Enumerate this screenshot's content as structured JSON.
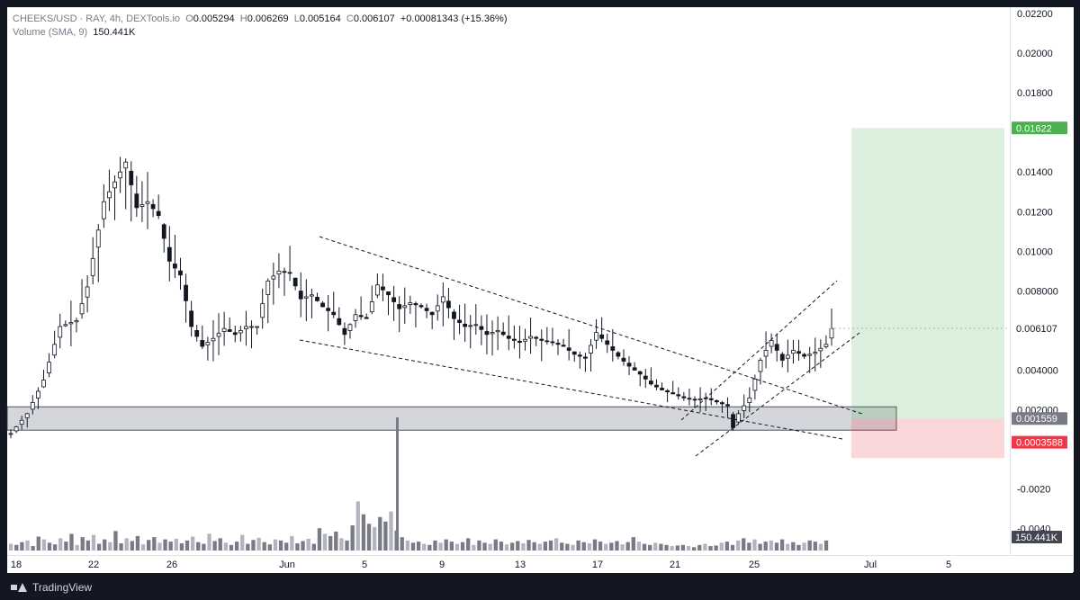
{
  "legend": {
    "symbol": "CHEEKS/USD · RAY, 4h, DEXTools.io",
    "o_label": "O",
    "o_value": "0.005294",
    "h_label": "H",
    "h_value": "0.006269",
    "l_label": "L",
    "l_value": "0.005164",
    "c_label": "C",
    "c_value": "0.006107",
    "change": "+0.00081343 (+15.36%)",
    "volume_label": "Volume (SMA, 9)",
    "volume_value": "150.441K"
  },
  "branding": {
    "name": "TradingView"
  },
  "chart_data": {
    "type": "candlestick",
    "price_axis": {
      "ticks": [
        "0.02200",
        "0.02000",
        "0.01800",
        "0.01400",
        "0.01200",
        "0.01000",
        "0.008000",
        "0.004000",
        "0.002000",
        "-0.0020",
        "-0.0040"
      ],
      "tick_values": [
        0.022,
        0.02,
        0.018,
        0.014,
        0.012,
        0.01,
        0.008,
        0.004,
        0.002,
        -0.002,
        -0.004
      ]
    },
    "time_axis": {
      "labels": [
        "18",
        "22",
        "26",
        "Jun",
        "5",
        "9",
        "13",
        "17",
        "21",
        "25",
        "Jul",
        "5"
      ]
    },
    "price_markers": [
      {
        "label": "0.01622",
        "value": 0.01622,
        "color": "#4caf50"
      },
      {
        "label": "0.006107",
        "value": 0.006107,
        "color": "#ffffff"
      },
      {
        "label": "0.001559",
        "value": 0.001559,
        "color": "#787b86"
      },
      {
        "label": "0.0003588",
        "value": 0.0003588,
        "color": "#f23645"
      }
    ],
    "volume_marker": {
      "label": "150.441K",
      "color": "#434651"
    },
    "price_path": [
      [
        0,
        0.0008
      ],
      [
        3,
        0.0018
      ],
      [
        6,
        0.0035
      ],
      [
        9,
        0.0062
      ],
      [
        12,
        0.0065
      ],
      [
        14,
        0.0082
      ],
      [
        17,
        0.0125
      ],
      [
        19,
        0.0135
      ],
      [
        21,
        0.0145
      ],
      [
        23,
        0.0122
      ],
      [
        25,
        0.0125
      ],
      [
        27,
        0.0118
      ],
      [
        29,
        0.0095
      ],
      [
        31,
        0.0088
      ],
      [
        33,
        0.0062
      ],
      [
        35,
        0.0052
      ],
      [
        37,
        0.0056
      ],
      [
        39,
        0.0061
      ],
      [
        41,
        0.0058
      ],
      [
        43,
        0.0062
      ],
      [
        45,
        0.0062
      ],
      [
        47,
        0.0085
      ],
      [
        49,
        0.009
      ],
      [
        51,
        0.0089
      ],
      [
        53,
        0.0076
      ],
      [
        55,
        0.0078
      ],
      [
        57,
        0.0072
      ],
      [
        59,
        0.0068
      ],
      [
        61,
        0.0058
      ],
      [
        63,
        0.0068
      ],
      [
        65,
        0.0066
      ],
      [
        67,
        0.0083
      ],
      [
        69,
        0.0078
      ],
      [
        71,
        0.0071
      ],
      [
        73,
        0.0074
      ],
      [
        75,
        0.0072
      ],
      [
        77,
        0.0068
      ],
      [
        79,
        0.0077
      ],
      [
        81,
        0.0066
      ],
      [
        83,
        0.0062
      ],
      [
        85,
        0.0063
      ],
      [
        87,
        0.0058
      ],
      [
        89,
        0.006
      ],
      [
        91,
        0.0056
      ],
      [
        93,
        0.0054
      ],
      [
        95,
        0.0057
      ],
      [
        97,
        0.0055
      ],
      [
        99,
        0.0054
      ],
      [
        101,
        0.0052
      ],
      [
        103,
        0.0048
      ],
      [
        105,
        0.0046
      ],
      [
        107,
        0.0059
      ],
      [
        109,
        0.0053
      ],
      [
        111,
        0.0047
      ],
      [
        113,
        0.0042
      ],
      [
        115,
        0.0038
      ],
      [
        117,
        0.0033
      ],
      [
        119,
        0.003
      ],
      [
        121,
        0.0028
      ],
      [
        123,
        0.0026
      ],
      [
        125,
        0.0025
      ],
      [
        127,
        0.0026
      ],
      [
        129,
        0.0024
      ],
      [
        131,
        0.0022
      ],
      [
        132,
        0.0011
      ],
      [
        133,
        0.0018
      ],
      [
        135,
        0.0026
      ],
      [
        137,
        0.0045
      ],
      [
        139,
        0.0055
      ],
      [
        141,
        0.0045
      ],
      [
        143,
        0.005
      ],
      [
        145,
        0.0047
      ],
      [
        147,
        0.0049
      ],
      [
        149,
        0.0053
      ],
      [
        150,
        0.0061
      ]
    ],
    "volume_values": [
      12,
      10,
      15,
      18,
      8,
      25,
      20,
      14,
      11,
      22,
      16,
      30,
      10,
      24,
      18,
      28,
      12,
      20,
      15,
      35,
      13,
      22,
      17,
      26,
      11,
      19,
      24,
      14,
      20,
      16,
      21,
      13,
      18,
      25,
      15,
      12,
      30,
      17,
      22,
      14,
      10,
      16,
      28,
      12,
      19,
      23,
      15,
      11,
      20,
      18,
      14,
      26,
      13,
      17,
      21,
      12,
      40,
      30,
      26,
      34,
      22,
      18,
      45,
      88,
      65,
      48,
      42,
      60,
      52,
      70,
      36,
      24,
      18,
      14,
      16,
      12,
      10,
      18,
      14,
      20,
      16,
      12,
      15,
      22,
      10,
      18,
      14,
      12,
      20,
      16,
      11,
      14,
      17,
      13,
      19,
      15,
      12,
      16,
      18,
      22,
      14,
      12,
      10,
      18,
      15,
      13,
      20,
      16,
      12,
      14,
      17,
      11,
      15,
      24,
      16,
      12,
      10,
      14,
      12,
      10,
      8,
      9,
      10,
      8,
      6,
      10,
      12,
      8,
      9,
      14,
      16,
      10,
      18,
      22,
      14,
      20,
      12,
      16,
      18,
      14,
      20,
      12,
      15,
      10,
      14,
      18,
      16,
      12,
      18
    ],
    "volume_spike_value": 170,
    "price_range": [
      -0.0048,
      0.0223
    ]
  }
}
